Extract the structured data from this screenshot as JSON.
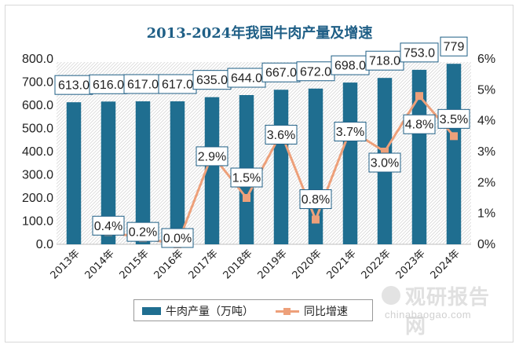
{
  "chart_data": {
    "type": "bar",
    "title": "2013-2024年我国牛肉产量及增速",
    "categories": [
      "2013年",
      "2014年",
      "2015年",
      "2016年",
      "2017年",
      "2018年",
      "2019年",
      "2020年",
      "2021年",
      "2022年",
      "2023年",
      "2024年"
    ],
    "series": [
      {
        "name": "牛肉产量（万吨）",
        "type": "bar",
        "axis": "left",
        "values": [
          613.0,
          616.0,
          617.0,
          617.0,
          635.0,
          644.0,
          667.0,
          672.0,
          698.0,
          718.0,
          753.0,
          779
        ],
        "labels": [
          "613.0",
          "616.0",
          "617.0",
          "617.0",
          "635.0",
          "644.0",
          "667.0",
          "672.0",
          "698.0",
          "718.0",
          "753.0",
          "779"
        ]
      },
      {
        "name": "同比增速",
        "type": "line",
        "axis": "right",
        "values": [
          null,
          0.4,
          0.2,
          0.0,
          2.9,
          1.5,
          3.6,
          0.8,
          3.7,
          3.0,
          4.8,
          3.5
        ],
        "labels": [
          "",
          "0.4%",
          "0.2%",
          "0.0%",
          "2.9%",
          "1.5%",
          "3.6%",
          "0.8%",
          "3.7%",
          "3.0%",
          "4.8%",
          "3.5%"
        ]
      }
    ],
    "y_left": {
      "min": 0,
      "max": 800,
      "ticks": [
        "0.0",
        "100.0",
        "200.0",
        "300.0",
        "400.0",
        "500.0",
        "600.0",
        "700.0",
        "800.0"
      ]
    },
    "y_right": {
      "min": 0,
      "max": 6,
      "ticks": [
        "0%",
        "1%",
        "2%",
        "3%",
        "4%",
        "5%",
        "6%"
      ]
    },
    "grid": false,
    "legend": "bottom",
    "colors": {
      "bar": "#1f6e90",
      "line": "#eda07a",
      "title": "#1f5f86",
      "label_border": "#1f5f86"
    }
  },
  "watermark": {
    "brand": "观研报告网",
    "url": "chinabaogao.com"
  }
}
